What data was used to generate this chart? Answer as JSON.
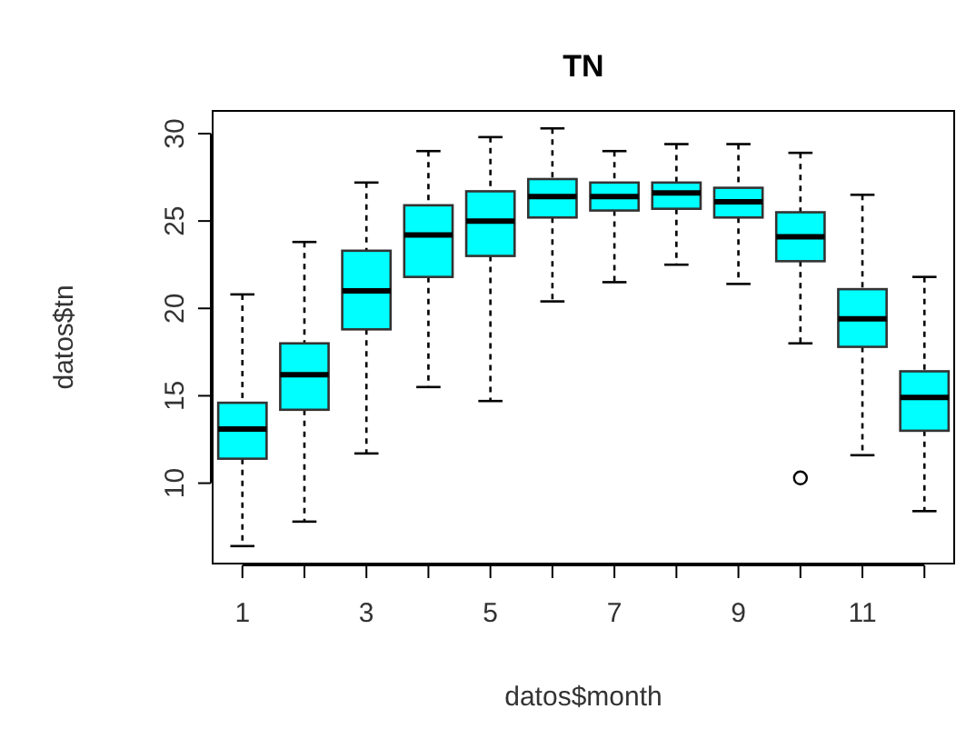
{
  "chart_data": {
    "type": "box",
    "title": "TN",
    "xlabel": "datos$month",
    "ylabel": "datos$tn",
    "color": "#00ffff",
    "ylim": [
      5.4,
      31.3
    ],
    "yticks": [
      10,
      15,
      20,
      25,
      30
    ],
    "grid": false,
    "categories": [
      "1",
      null,
      "3",
      null,
      "5",
      null,
      "7",
      null,
      "9",
      null,
      "11",
      null
    ],
    "boxes": [
      {
        "low": 6.4,
        "q1": 11.4,
        "median": 13.1,
        "q3": 14.6,
        "high": 20.8
      },
      {
        "low": 7.8,
        "q1": 14.2,
        "median": 16.2,
        "q3": 18.0,
        "high": 23.8
      },
      {
        "low": 11.7,
        "q1": 18.8,
        "median": 21.0,
        "q3": 23.3,
        "high": 27.2
      },
      {
        "low": 15.5,
        "q1": 21.8,
        "median": 24.2,
        "q3": 25.9,
        "high": 29.0
      },
      {
        "low": 14.7,
        "q1": 23.0,
        "median": 25.0,
        "q3": 26.7,
        "high": 29.8
      },
      {
        "low": 20.4,
        "q1": 25.2,
        "median": 26.4,
        "q3": 27.4,
        "high": 30.3
      },
      {
        "low": 21.5,
        "q1": 25.6,
        "median": 26.4,
        "q3": 27.2,
        "high": 29.0
      },
      {
        "low": 22.5,
        "q1": 25.7,
        "median": 26.6,
        "q3": 27.2,
        "high": 29.4
      },
      {
        "low": 21.4,
        "q1": 25.2,
        "median": 26.1,
        "q3": 26.9,
        "high": 29.4
      },
      {
        "low": 18.0,
        "q1": 22.7,
        "median": 24.1,
        "q3": 25.5,
        "high": 28.9,
        "outliers": [
          10.3
        ]
      },
      {
        "low": 11.6,
        "q1": 17.8,
        "median": 19.4,
        "q3": 21.1,
        "high": 26.5
      },
      {
        "low": 8.4,
        "q1": 13.0,
        "median": 14.9,
        "q3": 16.4,
        "high": 21.8
      }
    ]
  }
}
